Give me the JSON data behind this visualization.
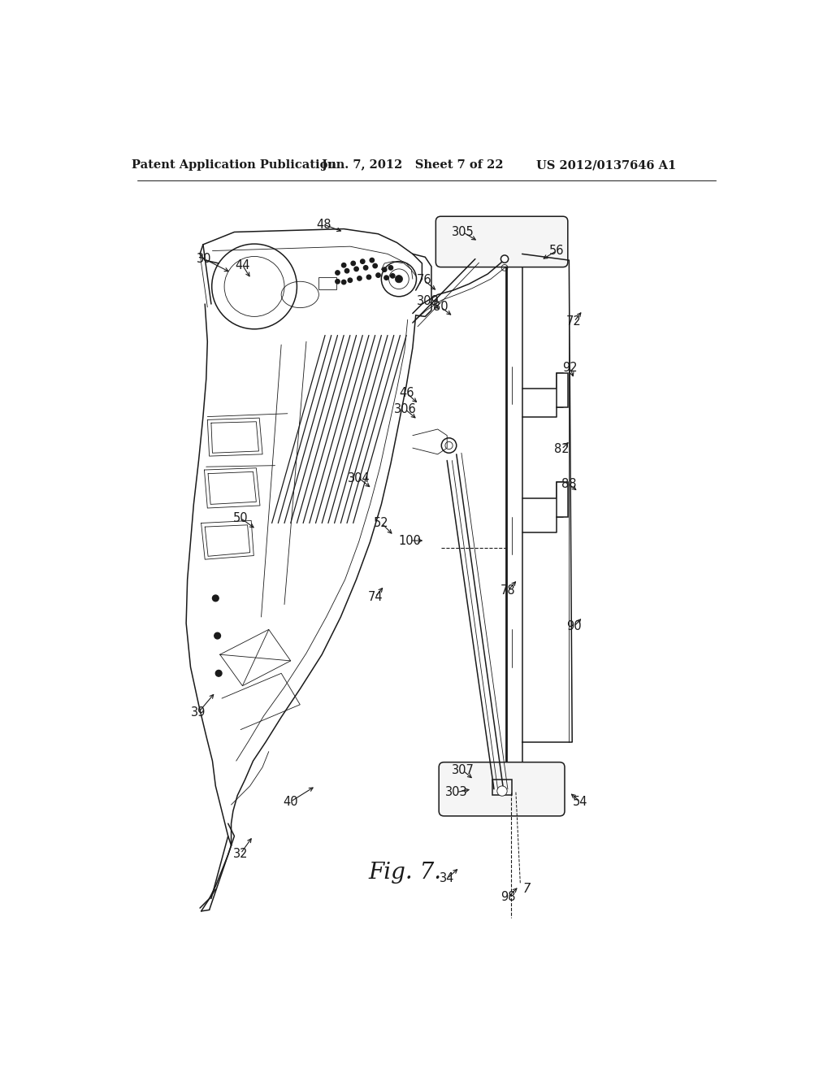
{
  "bg_color": "#ffffff",
  "header_text_left": "Patent Application Publication",
  "header_text_mid": "Jun. 7, 2012  Sheet 7 of 22",
  "header_text_right": "US 2012/0137646 A1",
  "header_font_size": 10.5,
  "fig_label": "Fig. 7.",
  "fig_label_fontsize": 20,
  "line_color": "#1a1a1a",
  "label_fontsize": 10.5,
  "lw_main": 1.1,
  "lw_thin": 0.6,
  "lw_thick": 2.0
}
